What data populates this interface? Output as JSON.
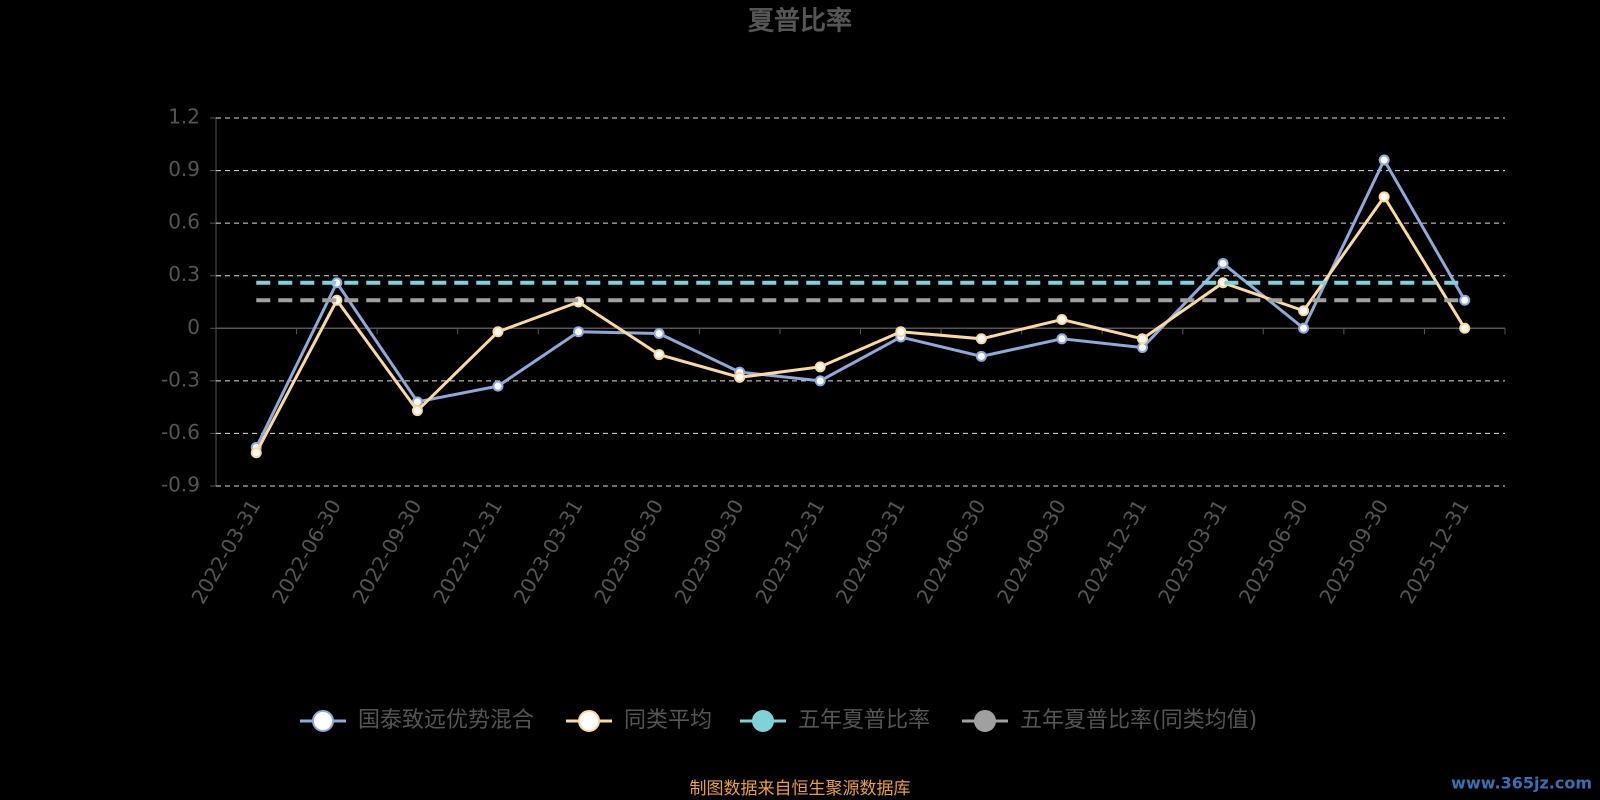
{
  "chart_data": {
    "type": "line",
    "title": "夏普比率",
    "categories": [
      "2022-03-31",
      "2022-06-30",
      "2022-09-30",
      "2022-12-31",
      "2023-03-31",
      "2023-06-30",
      "2023-09-30",
      "2023-12-31",
      "2024-03-31",
      "2024-06-30",
      "2024-09-30",
      "2024-12-31",
      "2025-03-31",
      "2025-06-30",
      "2025-09-30",
      "2025-12-31"
    ],
    "series": [
      {
        "name": "国泰致远优势混合",
        "color": "#8fa9d8",
        "style": "solid",
        "values": [
          -0.68,
          0.26,
          -0.42,
          -0.33,
          -0.02,
          -0.03,
          -0.25,
          -0.3,
          -0.05,
          -0.16,
          -0.06,
          -0.11,
          0.37,
          0.0,
          0.96,
          0.16
        ]
      },
      {
        "name": "同类平均",
        "color": "#fcd9a0",
        "style": "solid",
        "values": [
          -0.71,
          0.16,
          -0.47,
          -0.02,
          0.15,
          -0.15,
          -0.28,
          -0.22,
          -0.02,
          -0.06,
          0.05,
          -0.06,
          0.26,
          0.1,
          0.75,
          0.0
        ]
      },
      {
        "name": "五年夏普比率",
        "color": "#7fd3d8",
        "style": "dashed",
        "values": [
          0.26,
          0.26,
          0.26,
          0.26,
          0.26,
          0.26,
          0.26,
          0.26,
          0.26,
          0.26,
          0.26,
          0.26,
          0.26,
          0.26,
          0.26,
          0.26
        ]
      },
      {
        "name": "五年夏普比率(同类均值)",
        "color": "#a0a0a0",
        "style": "dashed",
        "values": [
          0.16,
          0.16,
          0.16,
          0.16,
          0.16,
          0.16,
          0.16,
          0.16,
          0.16,
          0.16,
          0.16,
          0.16,
          0.16,
          0.16,
          0.16,
          0.16
        ]
      }
    ],
    "ylim": [
      -0.9,
      1.2
    ],
    "yticks": [
      -0.9,
      -0.6,
      -0.3,
      0,
      0.3,
      0.6,
      0.9,
      1.2
    ],
    "grid": true,
    "source": "制图数据来自恒生聚源数据库",
    "watermark": "www.365jz.com"
  }
}
